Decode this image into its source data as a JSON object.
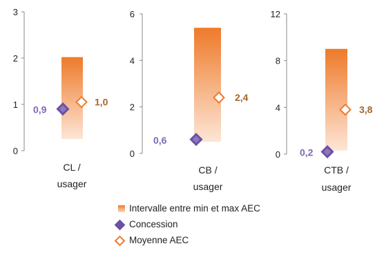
{
  "colors": {
    "range_top": "#ee7a2a",
    "range_bottom": "#fde6d6",
    "concession": "#6a52a3",
    "moyenne": "#ec7a2d",
    "concession_label": "#7f68b5",
    "moyenne_label": "#a5652a"
  },
  "legend": {
    "range": "Intervalle entre min et max AEC",
    "concession": "Concession",
    "moyenne": "Moyenne AEC"
  },
  "chart_data": [
    {
      "type": "range-dot",
      "category_line1": "CL /",
      "category_line2": "usager",
      "ylim": [
        0,
        3
      ],
      "yticks": [
        "0",
        "1",
        "2",
        "3"
      ],
      "range_min": 0.25,
      "range_max": 2.02,
      "concession": 0.9,
      "concession_label": "0,9",
      "moyenne": 1.05,
      "moyenne_label": "1,0"
    },
    {
      "type": "range-dot",
      "category_line1": "CB /",
      "category_line2": "usager",
      "ylim": [
        0,
        6
      ],
      "yticks": [
        "0",
        "2",
        "4",
        "6"
      ],
      "range_min": 0.5,
      "range_max": 5.4,
      "concession": 0.6,
      "concession_label": "0,6",
      "moyenne": 2.4,
      "moyenne_label": "2,4"
    },
    {
      "type": "range-dot",
      "category_line1": "CTB /",
      "category_line2": "usager",
      "ylim": [
        0,
        12
      ],
      "yticks": [
        "0",
        "4",
        "8",
        "12"
      ],
      "range_min": 0.3,
      "range_max": 9.0,
      "concession": 0.2,
      "concession_label": "0,2",
      "moyenne": 3.8,
      "moyenne_label": "3,8"
    }
  ]
}
